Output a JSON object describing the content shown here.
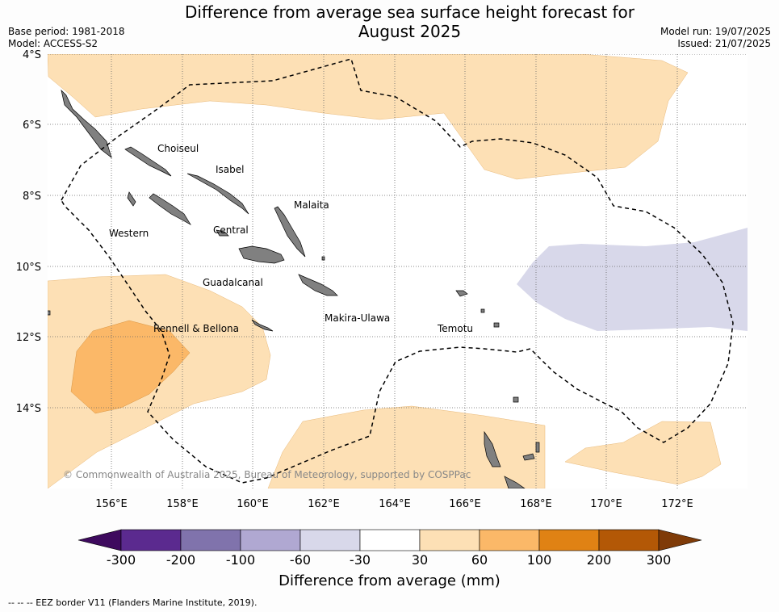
{
  "header": {
    "title_line1": "Difference from average sea surface height forecast for",
    "title_line2": "August 2025",
    "base_period": "Base period: 1981-2018",
    "model": "Model: ACCESS-S2",
    "model_run": "Model run: 19/07/2025",
    "issued": "Issued: 21/07/2025"
  },
  "map": {
    "lat_labels": [
      "4°S",
      "6°S",
      "8°S",
      "10°S",
      "12°S",
      "14°S"
    ],
    "lon_labels": [
      "156°E",
      "158°E",
      "160°E",
      "162°E",
      "164°E",
      "166°E",
      "168°E",
      "170°E",
      "172°E"
    ],
    "province_labels": [
      "Choiseul",
      "Isabel",
      "Malaita",
      "Western",
      "Central",
      "Guadalcanal",
      "Makira-Ulawa",
      "Rennell & Bellona",
      "Temotu"
    ],
    "copyright": "© Commonwealth of Australia 2025, Bureau of Meteorology, supported by COSPPac",
    "colors": {
      "land": "#808080",
      "neg_30_60": "#d8d8ea",
      "pos_30_60": "#fde0b5",
      "pos_60_100": "#fbb868",
      "eez": "#000000"
    }
  },
  "colorbar": {
    "ticks": [
      "-300",
      "-200",
      "-100",
      "-60",
      "-30",
      "30",
      "60",
      "100",
      "200",
      "300"
    ],
    "colors": [
      "#3e0a5e",
      "#5b2a8f",
      "#8073ac",
      "#b0a8d2",
      "#d8d8ea",
      "#ffffff",
      "#fde0b5",
      "#fbb868",
      "#e08214",
      "#b35806",
      "#7f3b08"
    ],
    "label": "Difference from average (mm)"
  },
  "footnote": "--  --  -- EEZ border V11 (Flanders Marine Institute, 2019)."
}
